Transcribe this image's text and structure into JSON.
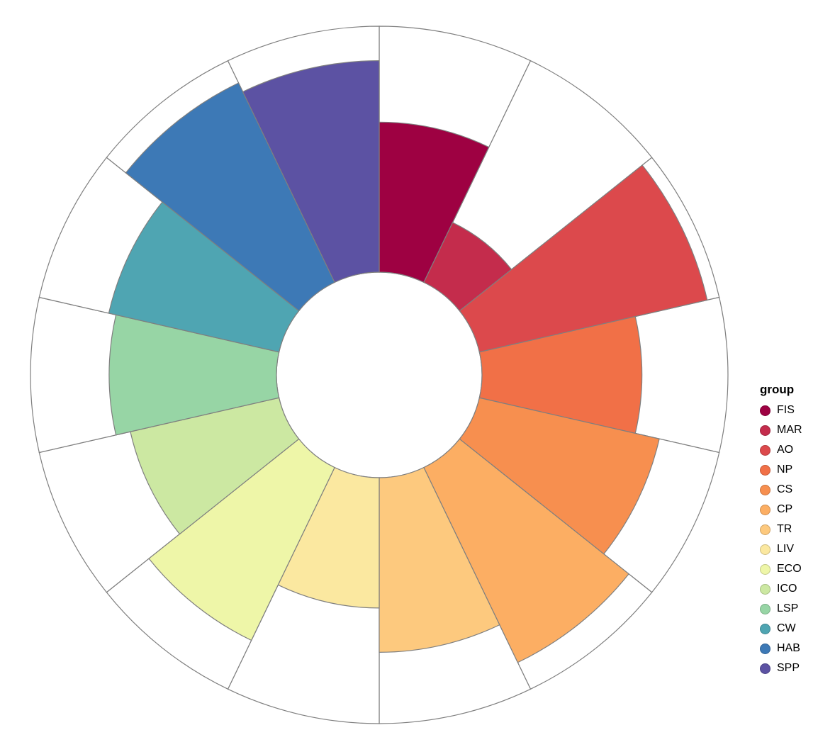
{
  "chart_data": {
    "type": "bar",
    "coordinate": "polar",
    "title": "",
    "legend_title": "group",
    "legend_position": "right",
    "categories": [
      "FIS",
      "MAR",
      "AO",
      "NP",
      "CS",
      "CP",
      "TR",
      "LIV",
      "ECO",
      "ICO",
      "LSP",
      "CW",
      "HAB",
      "SPP"
    ],
    "values": [
      61,
      27,
      95,
      65,
      75,
      88,
      71,
      53,
      78,
      62,
      68,
      71,
      90,
      86
    ],
    "value_range": [
      0,
      100
    ],
    "colors": [
      "#9E0142",
      "#C42C4C",
      "#DC494C",
      "#F17047",
      "#F78F4F",
      "#FCAE63",
      "#FDC97E",
      "#FBE8A0",
      "#EEF6A8",
      "#CCE8A2",
      "#97D5A5",
      "#4FA5B2",
      "#3D79B6",
      "#5C52A3"
    ],
    "start_angle_deg": 0,
    "direction": "clockwise",
    "center": [
      535,
      529
    ],
    "outer_radius": 492,
    "inner_radius": 145,
    "outline_color": "#7f7f7f",
    "background": "#FFFFFF",
    "grid": false
  }
}
